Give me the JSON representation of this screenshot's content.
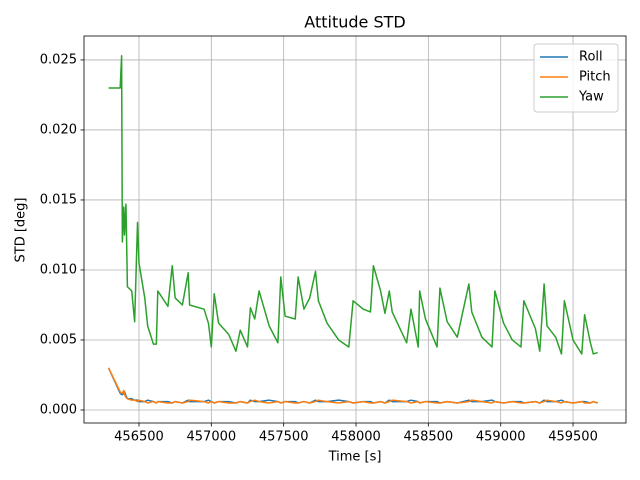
{
  "chart_data": {
    "type": "line",
    "title": "Attitude STD",
    "x_label": "Time [s]",
    "y_label": "STD [deg]",
    "x": [
      456290,
      456370,
      456380,
      456385,
      456395,
      456400,
      456410,
      456420,
      456450,
      456470,
      456490,
      456500,
      456540,
      456560,
      456600,
      456620,
      456630,
      456700,
      456730,
      456750,
      456800,
      456840,
      456850,
      456950,
      456980,
      457000,
      457020,
      457050,
      457120,
      457170,
      457200,
      457250,
      457270,
      457300,
      457330,
      457400,
      457460,
      457480,
      457510,
      457580,
      457600,
      457640,
      457680,
      457720,
      457740,
      457800,
      457880,
      457950,
      457980,
      458050,
      458100,
      458120,
      458170,
      458200,
      458230,
      458250,
      458350,
      458380,
      458430,
      458440,
      458480,
      458560,
      458580,
      458630,
      458700,
      458780,
      458800,
      458870,
      458940,
      458960,
      459020,
      459080,
      459140,
      459160,
      459240,
      459270,
      459300,
      459320,
      459380,
      459420,
      459440,
      459500,
      459560,
      459580,
      459620,
      459640,
      459670
    ],
    "series": [
      {
        "name": "Roll",
        "color": "#1f77b4",
        "values": [
          0.003,
          0.0012,
          0.0011,
          0.0011,
          0.0012,
          0.0013,
          0.001,
          0.0008,
          0.0008,
          0.0007,
          0.0007,
          0.0006,
          0.0006,
          0.0007,
          0.0006,
          0.0005,
          0.0006,
          0.0006,
          0.0005,
          0.0006,
          0.0005,
          0.0007,
          0.0006,
          0.0006,
          0.0007,
          0.0006,
          0.0005,
          0.0006,
          0.0006,
          0.0005,
          0.0006,
          0.0005,
          0.0007,
          0.0006,
          0.0006,
          0.0007,
          0.0006,
          0.0005,
          0.0006,
          0.0006,
          0.0005,
          0.0006,
          0.0005,
          0.0007,
          0.0006,
          0.0006,
          0.0007,
          0.0006,
          0.0005,
          0.0006,
          0.0006,
          0.0005,
          0.0006,
          0.0005,
          0.0007,
          0.0006,
          0.0006,
          0.0007,
          0.0006,
          0.0005,
          0.0006,
          0.0006,
          0.0005,
          0.0006,
          0.0005,
          0.0007,
          0.0006,
          0.0006,
          0.0007,
          0.0006,
          0.0005,
          0.0006,
          0.0006,
          0.0005,
          0.0006,
          0.0005,
          0.0007,
          0.0006,
          0.0006,
          0.0007,
          0.0006,
          0.0005,
          0.0006,
          0.0006,
          0.0005,
          0.0006,
          0.0005
        ]
      },
      {
        "name": "Pitch",
        "color": "#ff7f0e",
        "values": [
          0.003,
          0.0013,
          0.0012,
          0.0012,
          0.0014,
          0.0011,
          0.0009,
          0.0008,
          0.0007,
          0.0007,
          0.0006,
          0.0007,
          0.0006,
          0.0005,
          0.0006,
          0.0005,
          0.0006,
          0.0005,
          0.0005,
          0.0006,
          0.0005,
          0.0006,
          0.0007,
          0.0006,
          0.0005,
          0.0006,
          0.0005,
          0.0006,
          0.0005,
          0.0005,
          0.0006,
          0.0005,
          0.0006,
          0.0007,
          0.0006,
          0.0005,
          0.0006,
          0.0005,
          0.0006,
          0.0005,
          0.0005,
          0.0006,
          0.0005,
          0.0006,
          0.0007,
          0.0006,
          0.0005,
          0.0006,
          0.0005,
          0.0006,
          0.0005,
          0.0005,
          0.0006,
          0.0005,
          0.0006,
          0.0007,
          0.0006,
          0.0005,
          0.0006,
          0.0005,
          0.0006,
          0.0005,
          0.0005,
          0.0006,
          0.0005,
          0.0006,
          0.0007,
          0.0006,
          0.0005,
          0.0006,
          0.0005,
          0.0006,
          0.0005,
          0.0005,
          0.0006,
          0.0005,
          0.0006,
          0.0007,
          0.0006,
          0.0005,
          0.0006,
          0.0005,
          0.0006,
          0.0005,
          0.0005,
          0.0006,
          0.0005
        ]
      },
      {
        "name": "Yaw",
        "color": "#2ca02c",
        "values": [
          0.023,
          0.023,
          0.0253,
          0.012,
          0.0145,
          0.0125,
          0.0147,
          0.0088,
          0.0085,
          0.0063,
          0.0134,
          0.0105,
          0.008,
          0.006,
          0.0047,
          0.0047,
          0.0085,
          0.0074,
          0.0103,
          0.008,
          0.0075,
          0.0098,
          0.0075,
          0.0072,
          0.0062,
          0.0045,
          0.0083,
          0.0062,
          0.0054,
          0.0042,
          0.0057,
          0.0045,
          0.0073,
          0.0065,
          0.0085,
          0.006,
          0.0048,
          0.0095,
          0.0067,
          0.0065,
          0.0095,
          0.0072,
          0.008,
          0.0099,
          0.0078,
          0.0062,
          0.005,
          0.0045,
          0.0078,
          0.0072,
          0.007,
          0.0103,
          0.0085,
          0.0069,
          0.0085,
          0.007,
          0.0048,
          0.0072,
          0.0045,
          0.0085,
          0.0065,
          0.0045,
          0.0087,
          0.0063,
          0.0052,
          0.009,
          0.007,
          0.0052,
          0.0045,
          0.0085,
          0.0062,
          0.005,
          0.0045,
          0.0078,
          0.0058,
          0.0042,
          0.009,
          0.006,
          0.0052,
          0.004,
          0.0078,
          0.005,
          0.004,
          0.0068,
          0.0048,
          0.004,
          0.0041
        ]
      }
    ],
    "xlim": [
      456120,
      459866
    ],
    "xticks": [
      456500,
      457000,
      457500,
      458000,
      458500,
      459000,
      459500
    ],
    "ylim": [
      -0.00093,
      0.02671
    ],
    "yticks": [
      {
        "value": 0,
        "label": "0.000"
      },
      {
        "value": 0.005,
        "label": "0.005"
      },
      {
        "value": 0.01,
        "label": "0.010"
      },
      {
        "value": 0.015,
        "label": "0.015"
      },
      {
        "value": 0.02,
        "label": "0.020"
      },
      {
        "value": 0.025,
        "label": "0.025"
      }
    ],
    "grid": true,
    "legend": "upper right"
  }
}
